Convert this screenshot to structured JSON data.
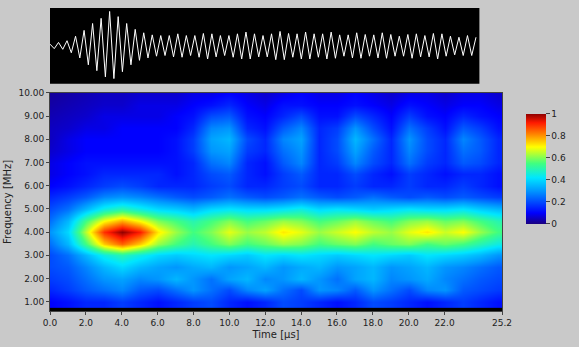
{
  "chart_data": [
    {
      "type": "line",
      "color": "#ffffff",
      "tick_labels": false,
      "xlim": [
        0,
        25.2
      ],
      "ylim": [
        -1.1,
        1.1
      ],
      "x": [
        0,
        0.25,
        0.5,
        0.75,
        1,
        1.25,
        1.5,
        1.75,
        2,
        2.25,
        2.5,
        2.75,
        3,
        3.25,
        3.5,
        3.75,
        4,
        4.25,
        4.5,
        4.75,
        5,
        5.25,
        5.5,
        5.75,
        6,
        6.25,
        6.5,
        6.75,
        7,
        7.25,
        7.5,
        7.75,
        8,
        8.25,
        8.5,
        8.75,
        9,
        9.25,
        9.5,
        9.75,
        10,
        10.25,
        10.5,
        10.75,
        11,
        11.25,
        11.5,
        11.75,
        12,
        12.25,
        12.5,
        12.75,
        13,
        13.25,
        13.5,
        13.75,
        14,
        14.25,
        14.5,
        14.75,
        15,
        15.25,
        15.5,
        15.75,
        16,
        16.25,
        16.5,
        16.75,
        17,
        17.25,
        17.5,
        17.75,
        18,
        18.25,
        18.5,
        18.75,
        19,
        19.25,
        19.5,
        19.75,
        20,
        20.25,
        20.5,
        20.75,
        21,
        21.25,
        21.5,
        21.75,
        22,
        22.25,
        22.5,
        22.75,
        23,
        23.25,
        23.5,
        23.75,
        24,
        24.25,
        24.5,
        24.75,
        25
      ],
      "values": [
        0.05,
        -0.08,
        0.1,
        -0.1,
        0.15,
        -0.2,
        0.28,
        -0.35,
        0.45,
        -0.55,
        0.65,
        -0.72,
        0.8,
        -0.9,
        1.0,
        -0.95,
        0.85,
        -0.75,
        0.65,
        -0.55,
        0.48,
        -0.42,
        0.38,
        -0.35,
        0.32,
        -0.3,
        0.3,
        -0.28,
        0.3,
        -0.32,
        0.35,
        -0.33,
        0.3,
        -0.28,
        0.3,
        -0.33,
        0.36,
        -0.38,
        0.35,
        -0.32,
        0.3,
        -0.28,
        0.3,
        -0.33,
        0.35,
        -0.38,
        0.4,
        -0.38,
        0.35,
        -0.32,
        0.3,
        -0.32,
        0.35,
        -0.4,
        0.42,
        -0.4,
        0.36,
        -0.33,
        0.35,
        -0.38,
        0.4,
        -0.38,
        0.35,
        -0.33,
        0.35,
        -0.38,
        0.4,
        -0.36,
        0.32,
        -0.3,
        0.32,
        -0.35,
        0.38,
        -0.36,
        0.33,
        -0.3,
        0.32,
        -0.35,
        0.38,
        -0.36,
        0.33,
        -0.3,
        0.28,
        -0.3,
        0.33,
        -0.36,
        0.35,
        -0.32,
        0.3,
        -0.32,
        0.36,
        -0.38,
        0.35,
        -0.3,
        0.28,
        -0.26,
        0.25,
        -0.28,
        0.3,
        -0.28,
        0.25
      ]
    },
    {
      "type": "heatmap",
      "xlabel": "Time [μs]",
      "ylabel": "Frequency [MHz]",
      "xlim": [
        0,
        25.2
      ],
      "ylim": [
        0.6,
        10
      ],
      "xticks": [
        {
          "value": 0,
          "label": "0.0"
        },
        {
          "value": 2,
          "label": "2.0"
        },
        {
          "value": 4,
          "label": "4.0"
        },
        {
          "value": 6,
          "label": "6.0"
        },
        {
          "value": 8,
          "label": "8.0"
        },
        {
          "value": 10,
          "label": "10.0"
        },
        {
          "value": 12,
          "label": "12.0"
        },
        {
          "value": 14,
          "label": "14.0"
        },
        {
          "value": 16,
          "label": "16.0"
        },
        {
          "value": 18,
          "label": "18.0"
        },
        {
          "value": 20,
          "label": "20.0"
        },
        {
          "value": 22,
          "label": "22.0"
        },
        25.2
      ],
      "yticks": [
        {
          "value": 1,
          "label": "1.00"
        },
        {
          "value": 2,
          "label": "2.00"
        },
        {
          "value": 3,
          "label": "3.00"
        },
        {
          "value": 4,
          "label": "4.00"
        },
        {
          "value": 5,
          "label": "5.00"
        },
        {
          "value": 6,
          "label": "6.00"
        },
        {
          "value": 7,
          "label": "7.00"
        },
        {
          "value": 8,
          "label": "8.00"
        },
        {
          "value": 9,
          "label": "9.00"
        },
        {
          "value": 10,
          "label": "10.00"
        }
      ],
      "colorbar": {
        "range": [
          0,
          1
        ],
        "ticks": [
          0,
          0.2,
          0.4,
          0.6,
          0.8,
          1
        ]
      },
      "x": [
        0,
        1,
        2,
        3,
        4,
        5,
        6,
        7,
        8,
        9,
        10,
        11,
        12,
        13,
        14,
        15,
        16,
        17,
        18,
        19,
        20,
        21,
        22,
        23,
        24,
        25
      ],
      "y": [
        1.0,
        1.5,
        2.0,
        2.5,
        3.0,
        3.5,
        4.0,
        4.5,
        5.0,
        5.5,
        6.0,
        6.5,
        7.0,
        7.5,
        8.0,
        8.5,
        9.0,
        9.5,
        10.0
      ],
      "z": [
        [
          0.1,
          0.12,
          0.15,
          0.15,
          0.18,
          0.15,
          0.12,
          0.15,
          0.18,
          0.2,
          0.15,
          0.12,
          0.15,
          0.2,
          0.18,
          0.15,
          0.12,
          0.15,
          0.2,
          0.18,
          0.15,
          0.12,
          0.15,
          0.18,
          0.15,
          0.12
        ],
        [
          0.15,
          0.18,
          0.22,
          0.25,
          0.28,
          0.22,
          0.2,
          0.25,
          0.3,
          0.25,
          0.2,
          0.28,
          0.32,
          0.25,
          0.2,
          0.3,
          0.28,
          0.22,
          0.3,
          0.25,
          0.2,
          0.28,
          0.3,
          0.22,
          0.2,
          0.18
        ],
        [
          0.18,
          0.2,
          0.25,
          0.3,
          0.32,
          0.28,
          0.3,
          0.35,
          0.3,
          0.25,
          0.32,
          0.35,
          0.28,
          0.3,
          0.35,
          0.3,
          0.25,
          0.32,
          0.35,
          0.28,
          0.3,
          0.33,
          0.28,
          0.25,
          0.22,
          0.2
        ],
        [
          0.2,
          0.22,
          0.28,
          0.35,
          0.4,
          0.35,
          0.32,
          0.3,
          0.33,
          0.35,
          0.3,
          0.32,
          0.35,
          0.3,
          0.33,
          0.35,
          0.3,
          0.32,
          0.35,
          0.3,
          0.32,
          0.35,
          0.3,
          0.28,
          0.25,
          0.22
        ],
        [
          0.2,
          0.25,
          0.35,
          0.45,
          0.5,
          0.45,
          0.4,
          0.38,
          0.4,
          0.42,
          0.4,
          0.38,
          0.42,
          0.4,
          0.42,
          0.4,
          0.38,
          0.4,
          0.42,
          0.4,
          0.38,
          0.42,
          0.4,
          0.38,
          0.35,
          0.3
        ],
        [
          0.25,
          0.35,
          0.55,
          0.75,
          0.85,
          0.75,
          0.62,
          0.55,
          0.5,
          0.55,
          0.6,
          0.55,
          0.58,
          0.62,
          0.6,
          0.55,
          0.58,
          0.6,
          0.55,
          0.58,
          0.6,
          0.55,
          0.58,
          0.55,
          0.5,
          0.45
        ],
        [
          0.3,
          0.4,
          0.65,
          0.9,
          1.0,
          0.92,
          0.72,
          0.62,
          0.55,
          0.6,
          0.68,
          0.62,
          0.65,
          0.72,
          0.68,
          0.62,
          0.66,
          0.7,
          0.65,
          0.62,
          0.68,
          0.72,
          0.66,
          0.7,
          0.62,
          0.55
        ],
        [
          0.25,
          0.35,
          0.55,
          0.7,
          0.78,
          0.7,
          0.6,
          0.55,
          0.5,
          0.55,
          0.6,
          0.55,
          0.58,
          0.62,
          0.6,
          0.55,
          0.58,
          0.62,
          0.58,
          0.55,
          0.6,
          0.62,
          0.58,
          0.6,
          0.55,
          0.5
        ],
        [
          0.2,
          0.25,
          0.35,
          0.45,
          0.5,
          0.45,
          0.4,
          0.38,
          0.35,
          0.4,
          0.42,
          0.4,
          0.4,
          0.42,
          0.45,
          0.4,
          0.42,
          0.4,
          0.38,
          0.4,
          0.42,
          0.4,
          0.4,
          0.42,
          0.38,
          0.35
        ],
        [
          0.15,
          0.18,
          0.22,
          0.28,
          0.3,
          0.28,
          0.25,
          0.22,
          0.2,
          0.22,
          0.25,
          0.22,
          0.2,
          0.22,
          0.25,
          0.22,
          0.2,
          0.22,
          0.25,
          0.22,
          0.2,
          0.22,
          0.2,
          0.22,
          0.2,
          0.18
        ],
        [
          0.1,
          0.12,
          0.15,
          0.18,
          0.2,
          0.18,
          0.15,
          0.15,
          0.15,
          0.18,
          0.2,
          0.15,
          0.15,
          0.18,
          0.2,
          0.15,
          0.15,
          0.18,
          0.15,
          0.15,
          0.18,
          0.15,
          0.15,
          0.18,
          0.15,
          0.12
        ],
        [
          0.08,
          0.1,
          0.12,
          0.15,
          0.15,
          0.15,
          0.15,
          0.12,
          0.15,
          0.2,
          0.22,
          0.15,
          0.12,
          0.18,
          0.22,
          0.15,
          0.15,
          0.2,
          0.15,
          0.12,
          0.18,
          0.15,
          0.12,
          0.15,
          0.15,
          0.12
        ],
        [
          0.08,
          0.1,
          0.12,
          0.12,
          0.12,
          0.12,
          0.12,
          0.12,
          0.15,
          0.25,
          0.28,
          0.15,
          0.12,
          0.22,
          0.28,
          0.15,
          0.18,
          0.28,
          0.2,
          0.15,
          0.25,
          0.18,
          0.15,
          0.22,
          0.2,
          0.15
        ],
        [
          0.06,
          0.08,
          0.1,
          0.1,
          0.1,
          0.1,
          0.1,
          0.12,
          0.18,
          0.3,
          0.32,
          0.18,
          0.15,
          0.25,
          0.3,
          0.15,
          0.2,
          0.32,
          0.22,
          0.15,
          0.28,
          0.2,
          0.15,
          0.25,
          0.22,
          0.15
        ],
        [
          0.05,
          0.08,
          0.1,
          0.1,
          0.1,
          0.1,
          0.1,
          0.12,
          0.18,
          0.32,
          0.35,
          0.2,
          0.15,
          0.28,
          0.32,
          0.15,
          0.2,
          0.35,
          0.25,
          0.15,
          0.3,
          0.2,
          0.15,
          0.28,
          0.22,
          0.15
        ],
        [
          0.05,
          0.06,
          0.08,
          0.08,
          0.1,
          0.1,
          0.1,
          0.1,
          0.15,
          0.28,
          0.3,
          0.15,
          0.12,
          0.22,
          0.28,
          0.15,
          0.18,
          0.3,
          0.2,
          0.12,
          0.25,
          0.18,
          0.12,
          0.22,
          0.18,
          0.12
        ],
        [
          0.04,
          0.05,
          0.06,
          0.08,
          0.08,
          0.08,
          0.08,
          0.1,
          0.12,
          0.2,
          0.22,
          0.12,
          0.1,
          0.15,
          0.2,
          0.12,
          0.12,
          0.2,
          0.15,
          0.1,
          0.18,
          0.12,
          0.1,
          0.15,
          0.12,
          0.1
        ],
        [
          0.03,
          0.04,
          0.05,
          0.06,
          0.06,
          0.08,
          0.08,
          0.08,
          0.1,
          0.12,
          0.15,
          0.1,
          0.08,
          0.12,
          0.12,
          0.1,
          0.1,
          0.12,
          0.1,
          0.08,
          0.12,
          0.1,
          0.08,
          0.1,
          0.1,
          0.08
        ],
        [
          0.02,
          0.03,
          0.04,
          0.05,
          0.05,
          0.06,
          0.06,
          0.06,
          0.08,
          0.08,
          0.1,
          0.08,
          0.06,
          0.08,
          0.1,
          0.08,
          0.08,
          0.1,
          0.08,
          0.06,
          0.08,
          0.08,
          0.06,
          0.08,
          0.08,
          0.06
        ]
      ]
    }
  ]
}
